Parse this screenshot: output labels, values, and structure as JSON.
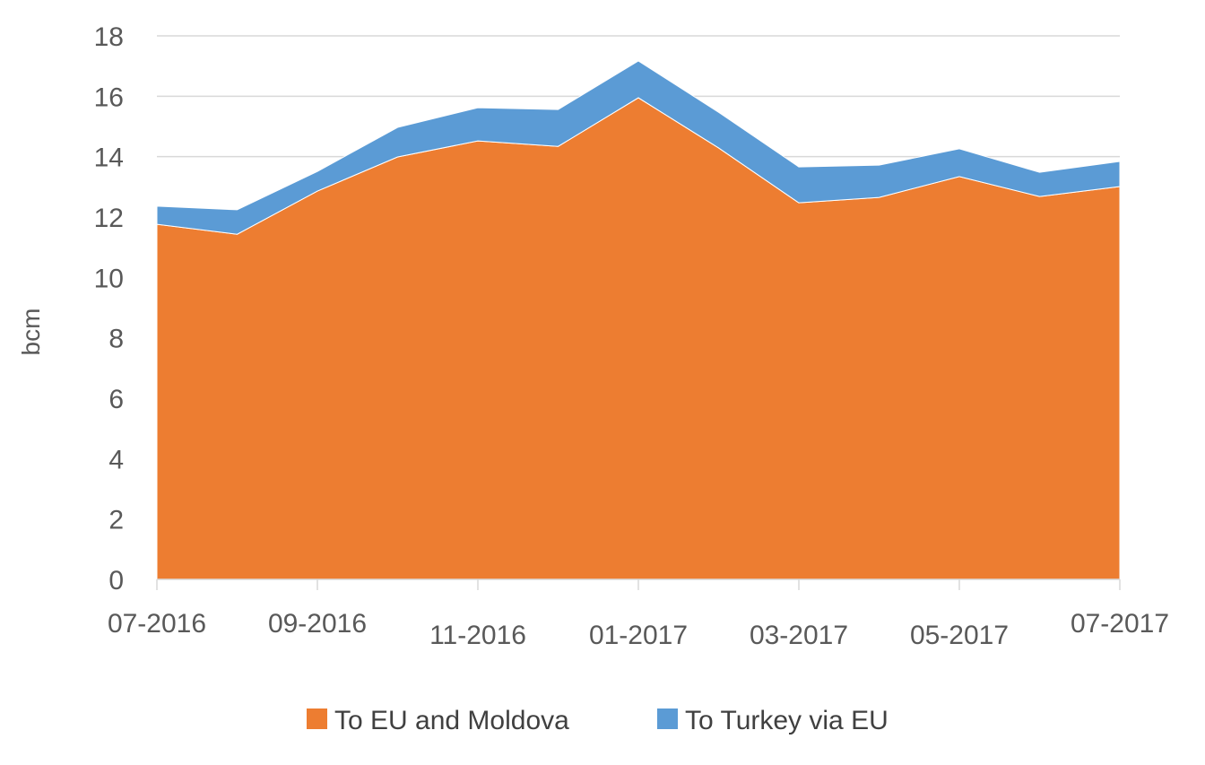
{
  "chart_data": {
    "type": "area",
    "stacked": true,
    "title": "",
    "xlabel": "",
    "ylabel": "bcm",
    "ylim": [
      0,
      18
    ],
    "yticks": [
      "0",
      "2",
      "4",
      "6",
      "8",
      "10",
      "12",
      "14",
      "16",
      "18"
    ],
    "x": [
      "07-2016",
      "08-2016",
      "09-2016",
      "10-2016",
      "11-2016",
      "12-2016",
      "01-2017",
      "02-2017",
      "03-2017",
      "04-2017",
      "05-2017",
      "06-2017",
      "07-2017"
    ],
    "xtick_labels": [
      "07-2016",
      "09-2016",
      "11-2016",
      "01-2017",
      "03-2017",
      "05-2017",
      "07-2017"
    ],
    "grid": "horizontal",
    "legend_position": "bottom",
    "series": [
      {
        "name": "To EU and Moldova",
        "color": "#ED7D31",
        "values": [
          11.76,
          11.43,
          12.86,
          13.99,
          14.52,
          14.34,
          15.95,
          14.29,
          12.47,
          12.65,
          13.34,
          12.68,
          13.01
        ]
      },
      {
        "name": "To Turkey via EU",
        "color": "#5B9BD5",
        "values": [
          0.6,
          0.81,
          0.65,
          0.98,
          1.1,
          1.22,
          1.22,
          1.18,
          1.19,
          1.07,
          0.92,
          0.8,
          0.83
        ]
      }
    ]
  }
}
